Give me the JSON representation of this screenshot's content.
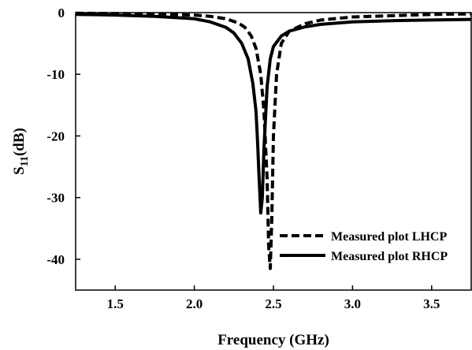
{
  "chart_data": {
    "type": "line",
    "xlabel": "Frequency (GHz)",
    "ylabel_main": "S",
    "ylabel_sub": "11",
    "ylabel_unit": "(dB)",
    "xlim": [
      1.25,
      3.75
    ],
    "ylim": [
      -45,
      0
    ],
    "xticks": [
      1.5,
      2.0,
      2.5,
      3.0,
      3.5
    ],
    "xtick_labels": [
      "1.5",
      "2.0",
      "2.5",
      "3.0",
      "3.5"
    ],
    "yticks": [
      0,
      -10,
      -20,
      -30,
      -40
    ],
    "ytick_labels": [
      "0",
      "-10",
      "-20",
      "-30",
      "-40"
    ],
    "grid": false,
    "legend_position": "bottom-right",
    "series": [
      {
        "name": "Measured plot LHCP",
        "style": "dashed",
        "color": "#000000",
        "x": [
          1.25,
          1.5,
          1.75,
          2.0,
          2.1,
          2.2,
          2.28,
          2.32,
          2.36,
          2.39,
          2.42,
          2.44,
          2.46,
          2.47,
          2.48,
          2.49,
          2.5,
          2.52,
          2.55,
          2.6,
          2.7,
          2.8,
          3.0,
          3.25,
          3.5,
          3.75
        ],
        "y": [
          -0.1,
          -0.15,
          -0.25,
          -0.4,
          -0.6,
          -1.0,
          -1.7,
          -2.4,
          -3.8,
          -5.8,
          -10.0,
          -16.0,
          -27.0,
          -38.0,
          -41.5,
          -33.0,
          -20.0,
          -10.0,
          -5.0,
          -3.0,
          -1.8,
          -1.2,
          -0.7,
          -0.5,
          -0.3,
          -0.2
        ]
      },
      {
        "name": "Measured plot RHCP",
        "style": "solid",
        "color": "#000000",
        "x": [
          1.25,
          1.5,
          1.75,
          2.0,
          2.1,
          2.2,
          2.25,
          2.3,
          2.34,
          2.37,
          2.39,
          2.4,
          2.41,
          2.42,
          2.43,
          2.44,
          2.46,
          2.48,
          2.5,
          2.55,
          2.6,
          2.7,
          2.8,
          3.0,
          3.25,
          3.5,
          3.75
        ],
        "y": [
          -0.3,
          -0.4,
          -0.6,
          -1.0,
          -1.5,
          -2.4,
          -3.3,
          -5.0,
          -7.5,
          -11.5,
          -16.0,
          -21.0,
          -27.0,
          -32.5,
          -30.0,
          -22.0,
          -12.0,
          -7.5,
          -5.5,
          -3.8,
          -3.0,
          -2.3,
          -1.9,
          -1.5,
          -1.3,
          -1.2,
          -1.1
        ]
      }
    ]
  }
}
